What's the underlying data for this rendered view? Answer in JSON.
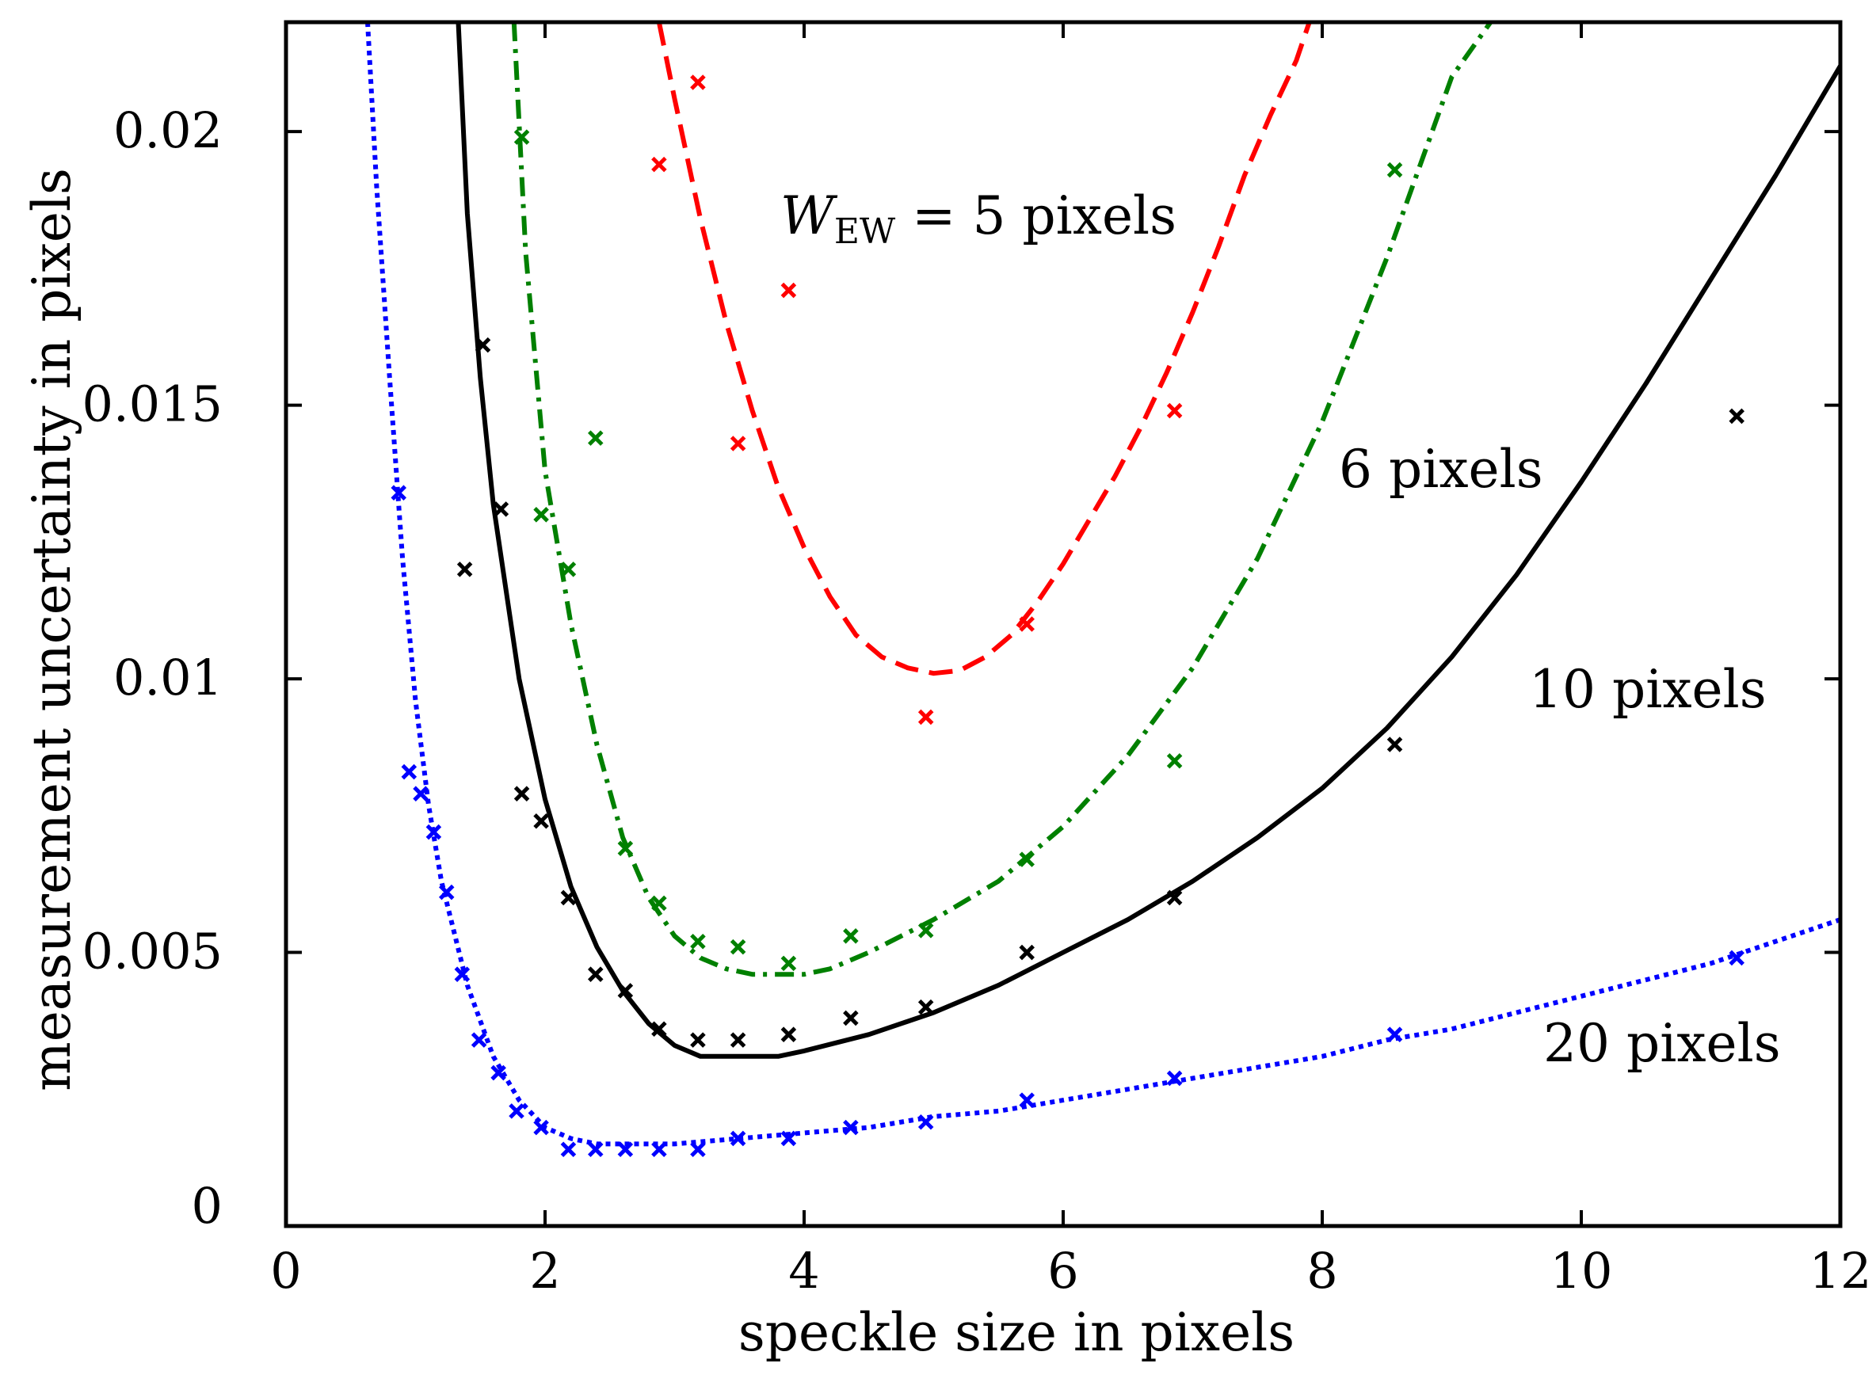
{
  "chart_data": {
    "type": "line",
    "title": "",
    "xlabel": "speckle size in pixels",
    "ylabel": "measurement uncertainty in pixels",
    "xlim": [
      0,
      12
    ],
    "ylim": [
      0,
      0.022
    ],
    "xticks": [
      0,
      2,
      4,
      6,
      8,
      10,
      12
    ],
    "xtick_labels": [
      "0",
      "2",
      "4",
      "6",
      "8",
      "10",
      "12"
    ],
    "yticks": [
      0,
      0.005,
      0.01,
      0.015,
      0.02
    ],
    "ytick_labels": [
      "0",
      "0.005",
      "0.01",
      "0.015",
      "0.02"
    ],
    "grid": false,
    "annotations": {
      "w5_prefix": "W",
      "w5_sub": "EW",
      "w5_rest": " = 5 pixels",
      "w6": "6 pixels",
      "w10": "10 pixels",
      "w20": "20 pixels"
    },
    "series": [
      {
        "name": "W_EW = 5 pixels",
        "color": "#ff0000",
        "style": "dashed",
        "curve_x": [
          2.88,
          3.0,
          3.2,
          3.4,
          3.6,
          3.8,
          4.0,
          4.2,
          4.4,
          4.6,
          4.8,
          5.0,
          5.2,
          5.4,
          5.6,
          5.8,
          6.0,
          6.2,
          6.4,
          6.6,
          6.8,
          7.0,
          7.2,
          7.4,
          7.6,
          7.8,
          7.9
        ],
        "curve_y": [
          0.022,
          0.0206,
          0.0184,
          0.0165,
          0.0149,
          0.0135,
          0.0124,
          0.0115,
          0.0108,
          0.0104,
          0.0102,
          0.0101,
          0.01015,
          0.0104,
          0.0108,
          0.0114,
          0.0121,
          0.0129,
          0.0137,
          0.0146,
          0.0156,
          0.0167,
          0.0179,
          0.0192,
          0.0203,
          0.0213,
          0.022
        ],
        "points_x": [
          2.88,
          3.18,
          3.49,
          3.88,
          4.94,
          5.72,
          6.86
        ],
        "points_y": [
          0.0194,
          0.0209,
          0.0143,
          0.0171,
          0.0093,
          0.011,
          0.0149
        ]
      },
      {
        "name": "6 pixels",
        "color": "#008000",
        "style": "dashdot",
        "curve_x": [
          1.76,
          1.85,
          2.0,
          2.2,
          2.4,
          2.6,
          2.8,
          3.0,
          3.2,
          3.4,
          3.6,
          3.8,
          4.0,
          4.2,
          4.5,
          5.0,
          5.5,
          6.0,
          6.5,
          7.0,
          7.5,
          8.0,
          8.5,
          9.0,
          9.3
        ],
        "curve_y": [
          0.022,
          0.0178,
          0.0138,
          0.011,
          0.0088,
          0.0071,
          0.006,
          0.0053,
          0.0049,
          0.0047,
          0.0046,
          0.0046,
          0.0046,
          0.0047,
          0.005,
          0.0056,
          0.0063,
          0.0073,
          0.0086,
          0.0102,
          0.0122,
          0.0147,
          0.0177,
          0.021,
          0.022
        ],
        "points_x": [
          1.82,
          1.97,
          2.18,
          2.39,
          2.62,
          2.88,
          3.18,
          3.49,
          3.88,
          4.36,
          4.94,
          5.72,
          6.86,
          8.56
        ],
        "points_y": [
          0.0199,
          0.013,
          0.012,
          0.0144,
          0.0069,
          0.0059,
          0.0052,
          0.0051,
          0.0048,
          0.0053,
          0.0054,
          0.0067,
          0.0085,
          0.0193
        ],
        "points_note": "green markers"
      },
      {
        "name": "10 pixels",
        "color": "#000000",
        "style": "solid",
        "curve_x": [
          1.33,
          1.4,
          1.5,
          1.6,
          1.8,
          2.0,
          2.2,
          2.4,
          2.6,
          2.8,
          3.0,
          3.2,
          3.4,
          3.6,
          3.8,
          4.0,
          4.5,
          5.0,
          5.5,
          6.0,
          6.5,
          7.0,
          7.5,
          8.0,
          8.5,
          9.0,
          9.5,
          10.0,
          10.5,
          11.0,
          11.5,
          12.0
        ],
        "curve_y": [
          0.022,
          0.0185,
          0.0155,
          0.0132,
          0.01,
          0.0078,
          0.0062,
          0.0051,
          0.0043,
          0.0037,
          0.0033,
          0.0031,
          0.0031,
          0.0031,
          0.0031,
          0.0032,
          0.0035,
          0.0039,
          0.0044,
          0.005,
          0.0056,
          0.0063,
          0.0071,
          0.008,
          0.0091,
          0.0104,
          0.0119,
          0.0136,
          0.0154,
          0.0173,
          0.0192,
          0.0212
        ],
        "points_x": [
          1.38,
          1.52,
          1.66,
          1.82,
          1.97,
          2.18,
          2.39,
          2.62,
          2.88,
          3.18,
          3.49,
          3.88,
          4.36,
          4.94,
          5.72,
          6.86,
          8.56,
          11.2
        ],
        "points_y": [
          0.012,
          0.0161,
          0.0131,
          0.0079,
          0.0074,
          0.006,
          0.0046,
          0.0043,
          0.0036,
          0.0034,
          0.0034,
          0.0035,
          0.0038,
          0.004,
          0.005,
          0.006,
          0.0088,
          0.0148
        ]
      },
      {
        "name": "20 pixels",
        "color": "#0000ff",
        "style": "dotted",
        "curve_x": [
          0.63,
          0.7,
          0.8,
          0.9,
          1.0,
          1.1,
          1.2,
          1.4,
          1.6,
          1.8,
          2.0,
          2.2,
          2.4,
          2.6,
          2.8,
          3.0,
          3.5,
          4.0,
          4.5,
          5.0,
          5.5,
          6.0,
          6.5,
          7.0,
          7.5,
          8.0,
          8.5,
          9.0,
          9.5,
          10.0,
          10.5,
          11.0,
          11.5,
          12.0
        ],
        "curve_y": [
          0.022,
          0.019,
          0.0155,
          0.0122,
          0.0096,
          0.0077,
          0.0063,
          0.0044,
          0.0031,
          0.0023,
          0.0018,
          0.0016,
          0.0015,
          0.0015,
          0.0015,
          0.0015,
          0.0016,
          0.0017,
          0.0018,
          0.002,
          0.0021,
          0.0023,
          0.0025,
          0.0027,
          0.0029,
          0.0031,
          0.0034,
          0.0036,
          0.0039,
          0.0042,
          0.0045,
          0.0048,
          0.0052,
          0.0056
        ],
        "points_x": [
          0.87,
          0.95,
          1.04,
          1.14,
          1.24,
          1.36,
          1.49,
          1.64,
          1.78,
          1.97,
          2.18,
          2.39,
          2.62,
          2.88,
          3.18,
          3.49,
          3.88,
          4.36,
          4.94,
          5.72,
          6.86,
          8.56,
          11.2
        ],
        "points_y": [
          0.0134,
          0.0083,
          0.0079,
          0.0072,
          0.0061,
          0.0046,
          0.0034,
          0.0028,
          0.0021,
          0.0018,
          0.0014,
          0.0014,
          0.0014,
          0.0014,
          0.0014,
          0.0016,
          0.0016,
          0.0018,
          0.0019,
          0.0023,
          0.0027,
          0.0035,
          0.0049
        ]
      }
    ]
  }
}
